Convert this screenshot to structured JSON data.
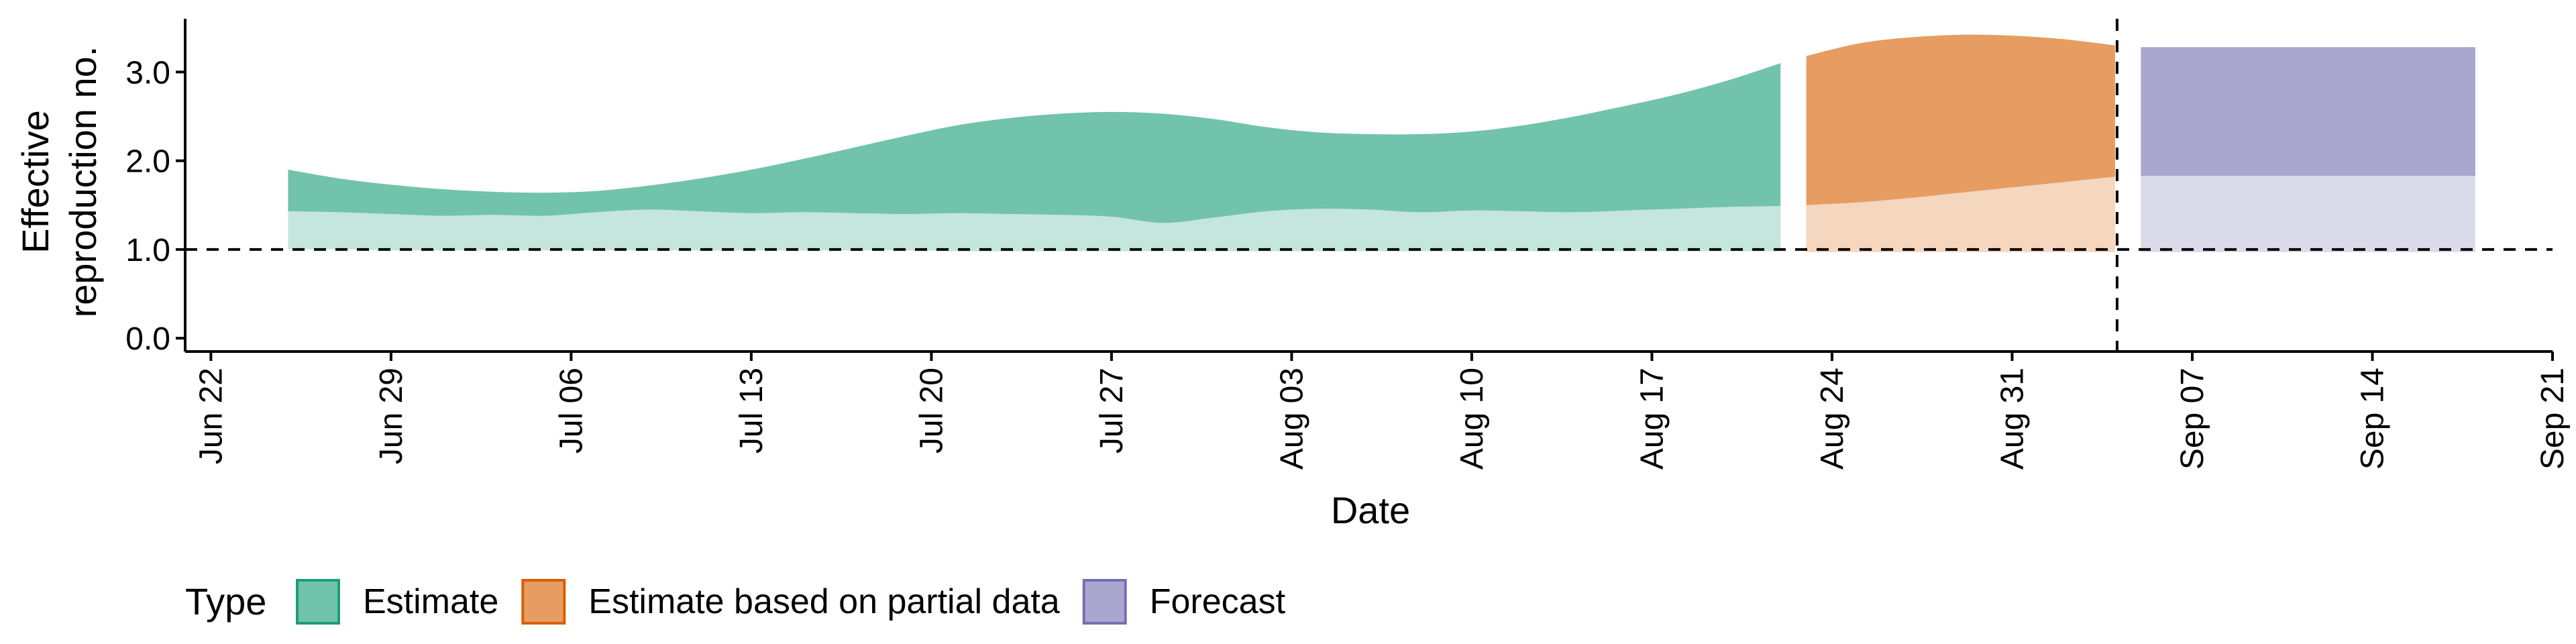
{
  "chart_data": {
    "type": "area",
    "xlabel": "Date",
    "ylabel": "Effective reproduction no.",
    "ylabel_lines": [
      "Effective",
      "reproduction no."
    ],
    "x_ticks": [
      "Jun 22",
      "Jun 29",
      "Jul 06",
      "Jul 13",
      "Jul 20",
      "Jul 27",
      "Aug 03",
      "Aug 10",
      "Aug 17",
      "Aug 24",
      "Aug 31",
      "Sep 07",
      "Sep 14",
      "Sep 21"
    ],
    "x_tick_dates": [
      "2020-06-22",
      "2020-06-29",
      "2020-07-06",
      "2020-07-13",
      "2020-07-20",
      "2020-07-27",
      "2020-08-03",
      "2020-08-10",
      "2020-08-17",
      "2020-08-24",
      "2020-08-31",
      "2020-09-07",
      "2020-09-14",
      "2020-09-21"
    ],
    "xlim": [
      "2020-06-21",
      "2020-09-21"
    ],
    "y_ticks": [
      0.0,
      1.0,
      2.0,
      3.0
    ],
    "y_tick_labels": [
      "0.0",
      "1.0",
      "2.0",
      "3.0"
    ],
    "ylim": [
      -0.15,
      3.6
    ],
    "reference_line_y": 1.0,
    "vertical_line_date": "2020-09-04",
    "legend": {
      "title": "Type",
      "placement": "bottom-left",
      "entries": [
        "Estimate",
        "Estimate based on partial data",
        "Forecast"
      ]
    },
    "series": [
      {
        "name": "Estimate",
        "color": "#1b9e77",
        "dates": [
          "2020-06-25",
          "2020-06-27",
          "2020-06-29",
          "2020-07-01",
          "2020-07-03",
          "2020-07-05",
          "2020-07-07",
          "2020-07-09",
          "2020-07-11",
          "2020-07-13",
          "2020-07-15",
          "2020-07-17",
          "2020-07-19",
          "2020-07-21",
          "2020-07-23",
          "2020-07-25",
          "2020-07-27",
          "2020-07-29",
          "2020-07-31",
          "2020-08-02",
          "2020-08-04",
          "2020-08-06",
          "2020-08-08",
          "2020-08-10",
          "2020-08-12",
          "2020-08-14",
          "2020-08-16",
          "2020-08-18",
          "2020-08-20",
          "2020-08-22"
        ],
        "upper_90": [
          1.9,
          1.8,
          1.73,
          1.68,
          1.65,
          1.64,
          1.66,
          1.72,
          1.8,
          1.9,
          2.02,
          2.15,
          2.28,
          2.4,
          2.48,
          2.53,
          2.55,
          2.53,
          2.47,
          2.38,
          2.32,
          2.3,
          2.3,
          2.33,
          2.4,
          2.5,
          2.62,
          2.75,
          2.91,
          3.1
        ],
        "upper_50": [
          1.43,
          1.42,
          1.4,
          1.38,
          1.39,
          1.38,
          1.42,
          1.45,
          1.43,
          1.41,
          1.42,
          1.41,
          1.4,
          1.41,
          1.4,
          1.39,
          1.37,
          1.3,
          1.36,
          1.43,
          1.46,
          1.45,
          1.42,
          1.44,
          1.43,
          1.42,
          1.44,
          1.46,
          1.48,
          1.49
        ],
        "lower_50": [
          1.12,
          1.11,
          1.11,
          1.1,
          1.1,
          1.09,
          1.09,
          1.09,
          1.09,
          1.08,
          1.08,
          1.08,
          1.08,
          1.07,
          1.07,
          1.07,
          1.06,
          1.06,
          1.06,
          1.06,
          1.06,
          1.06,
          1.06,
          1.05,
          1.05,
          1.05,
          1.05,
          1.05,
          1.05,
          1.05
        ],
        "lower_90": [
          1.0,
          1.0,
          0.99,
          0.99,
          0.99,
          0.99,
          0.99,
          0.99,
          0.99,
          0.99,
          0.99,
          0.99,
          0.99,
          0.98,
          0.98,
          0.98,
          0.98,
          0.98,
          0.98,
          0.98,
          0.98,
          0.98,
          0.98,
          0.98,
          0.98,
          0.98,
          0.98,
          0.98,
          0.98,
          0.98
        ]
      },
      {
        "name": "Estimate based on partial data",
        "color": "#d95f02",
        "dates": [
          "2020-08-23",
          "2020-08-25",
          "2020-08-27",
          "2020-08-29",
          "2020-08-31",
          "2020-09-02",
          "2020-09-04"
        ],
        "upper_90": [
          3.18,
          3.32,
          3.39,
          3.42,
          3.41,
          3.37,
          3.3
        ],
        "upper_50": [
          1.5,
          1.53,
          1.58,
          1.64,
          1.7,
          1.76,
          1.82
        ],
        "lower_50": [
          0.98,
          0.98,
          0.98,
          0.98,
          0.98,
          0.98,
          0.98
        ],
        "lower_90": [
          0.97,
          0.97,
          0.97,
          0.97,
          0.97,
          0.97,
          0.97
        ]
      },
      {
        "name": "Forecast",
        "color": "#7570b3",
        "dates": [
          "2020-09-05",
          "2020-09-18"
        ],
        "upper_90": [
          3.28,
          3.28
        ],
        "upper_50": [
          1.83,
          1.83
        ],
        "lower_50": [
          0.98,
          0.98
        ],
        "lower_90": [
          0.97,
          0.97
        ]
      }
    ]
  }
}
